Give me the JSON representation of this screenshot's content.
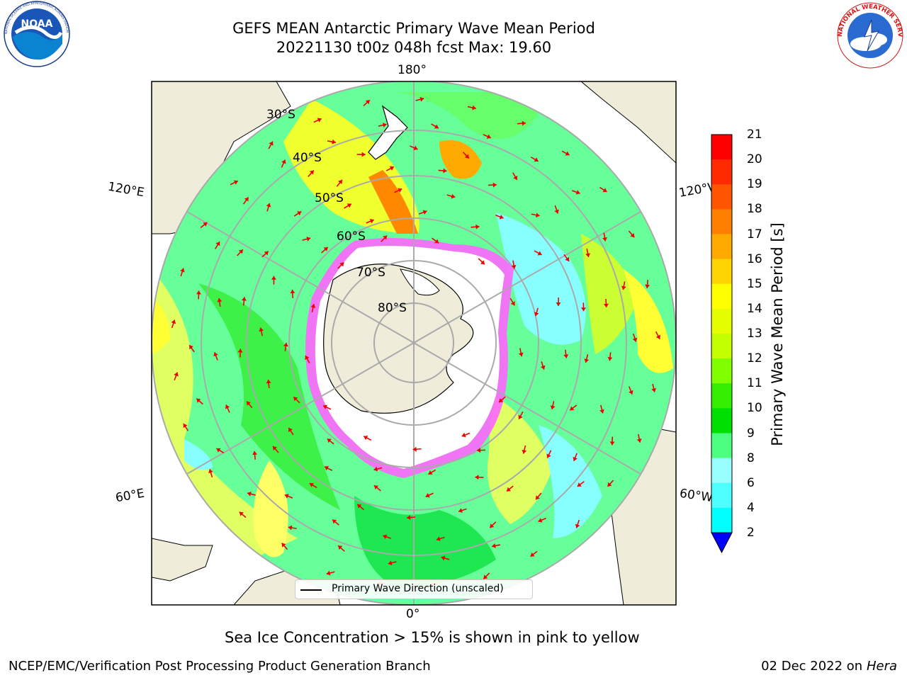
{
  "title": {
    "line1": "GEFS MEAN Antarctic Primary Wave Mean Period",
    "line2": "20221130 t00z 048h fcst   Max: 19.60"
  },
  "logos": {
    "left": "NOAA",
    "left_ring": "NATIONAL OCEANIC AND ATMOSPHERIC ADMINISTRATION · U.S. DEPARTMENT OF COMMERCE",
    "right_ring": "NATIONAL WEATHER SERVICE"
  },
  "map": {
    "longitude_labels": {
      "top": "180°",
      "bottom": "0°",
      "left_upper": "120°E",
      "left_lower": "60°E",
      "right_upper": "120°W",
      "right_lower": "60°W"
    },
    "latitude_labels": [
      "30°S",
      "40°S",
      "50°S",
      "60°S",
      "70°S",
      "80°S"
    ],
    "legend": "Primary Wave Direction (unscaled)"
  },
  "colorbar": {
    "title": "Primary Wave Mean Period [s]",
    "ticks": [
      "21",
      "20",
      "19",
      "18",
      "17",
      "16",
      "15",
      "14",
      "13",
      "12",
      "11",
      "10",
      "9",
      "8",
      "6",
      "4",
      "2"
    ],
    "colors": [
      "#ff0000",
      "#ff2a00",
      "#ff5500",
      "#ff8000",
      "#ffaa00",
      "#ffd400",
      "#ffff00",
      "#e6ff00",
      "#c4ff00",
      "#80ff00",
      "#33ee00",
      "#00e000",
      "#4dff80",
      "#99ffff",
      "#4dffff",
      "#00ffff",
      "#00ccff",
      "#0066ff",
      "#0000ff"
    ]
  },
  "caption": "Sea Ice Concentration > 15% is shown in pink to yellow",
  "footer": {
    "left": "NCEP/EMC/Verification Post Processing Product Generation Branch",
    "right_date": "02 Dec 2022 on",
    "right_machine": "Hera"
  }
}
